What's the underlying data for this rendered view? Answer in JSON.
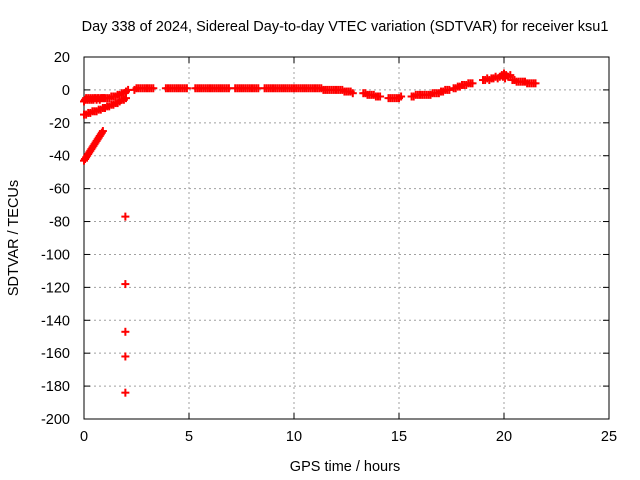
{
  "chart_data": {
    "type": "scatter",
    "title": "Day 338 of 2024, Sidereal Day-to-day VTEC variation (SDTVAR) for receiver ksu1",
    "xlabel": "GPS time / hours",
    "ylabel": "SDTVAR / TECUs",
    "xlim": [
      0,
      25
    ],
    "ylim": [
      -200,
      20
    ],
    "xticks": [
      0,
      5,
      10,
      15,
      20,
      25
    ],
    "yticks": [
      20,
      0,
      -20,
      -40,
      -60,
      -80,
      -100,
      -120,
      -140,
      -160,
      -180,
      -200
    ],
    "grid": true,
    "marker": "plus",
    "color": "#ff0000",
    "series": [
      {
        "name": "SDTVAR",
        "points": [
          [
            0.0,
            -7
          ],
          [
            0.05,
            -6
          ],
          [
            0.1,
            -5
          ],
          [
            0.15,
            -6
          ],
          [
            0.2,
            -5
          ],
          [
            0.25,
            -6
          ],
          [
            0.3,
            -5
          ],
          [
            0.35,
            -6
          ],
          [
            0.4,
            -5
          ],
          [
            0.45,
            -6
          ],
          [
            0.5,
            -5
          ],
          [
            0.55,
            -5
          ],
          [
            0.6,
            -6
          ],
          [
            0.65,
            -5
          ],
          [
            0.7,
            -5
          ],
          [
            0.75,
            -6
          ],
          [
            0.8,
            -5
          ],
          [
            0.85,
            -5
          ],
          [
            0.9,
            -5
          ],
          [
            0.95,
            -5
          ],
          [
            1.0,
            -5
          ],
          [
            1.1,
            -5
          ],
          [
            1.2,
            -5
          ],
          [
            1.3,
            -4
          ],
          [
            1.4,
            -4
          ],
          [
            1.5,
            -4
          ],
          [
            1.6,
            -3
          ],
          [
            1.7,
            -3
          ],
          [
            1.8,
            -2
          ],
          [
            1.9,
            -2
          ],
          [
            2.0,
            -1
          ],
          [
            2.1,
            0
          ],
          [
            0.0,
            -15
          ],
          [
            0.1,
            -15
          ],
          [
            0.2,
            -14
          ],
          [
            0.3,
            -14
          ],
          [
            0.4,
            -13
          ],
          [
            0.5,
            -13
          ],
          [
            0.6,
            -13
          ],
          [
            0.7,
            -12
          ],
          [
            0.8,
            -12
          ],
          [
            0.9,
            -11
          ],
          [
            1.0,
            -11
          ],
          [
            1.1,
            -10
          ],
          [
            1.2,
            -10
          ],
          [
            1.3,
            -9
          ],
          [
            1.4,
            -9
          ],
          [
            1.5,
            -8
          ],
          [
            1.6,
            -8
          ],
          [
            1.7,
            -7
          ],
          [
            1.8,
            -6
          ],
          [
            1.9,
            -6
          ],
          [
            2.0,
            -5
          ],
          [
            0.0,
            -43
          ],
          [
            0.05,
            -42
          ],
          [
            0.1,
            -41
          ],
          [
            0.15,
            -40
          ],
          [
            0.2,
            -39
          ],
          [
            0.25,
            -38
          ],
          [
            0.3,
            -37
          ],
          [
            0.35,
            -36
          ],
          [
            0.4,
            -35
          ],
          [
            0.45,
            -34
          ],
          [
            0.5,
            -33
          ],
          [
            0.55,
            -32
          ],
          [
            0.6,
            -31
          ],
          [
            0.65,
            -30
          ],
          [
            0.7,
            -29
          ],
          [
            0.75,
            -28
          ],
          [
            0.8,
            -27
          ],
          [
            0.85,
            -26
          ],
          [
            0.9,
            -25
          ],
          [
            1.97,
            -77
          ],
          [
            1.97,
            -118
          ],
          [
            1.97,
            -147
          ],
          [
            1.97,
            -162
          ],
          [
            1.97,
            -184
          ],
          [
            2.4,
            0
          ],
          [
            2.5,
            1
          ],
          [
            2.6,
            1
          ],
          [
            2.7,
            1
          ],
          [
            2.8,
            1
          ],
          [
            2.9,
            1
          ],
          [
            3.0,
            1
          ],
          [
            3.1,
            1
          ],
          [
            3.2,
            1
          ],
          [
            3.3,
            1
          ],
          [
            3.9,
            1
          ],
          [
            4.0,
            1
          ],
          [
            4.1,
            1
          ],
          [
            4.2,
            1
          ],
          [
            4.3,
            1
          ],
          [
            4.4,
            1
          ],
          [
            4.5,
            1
          ],
          [
            4.6,
            1
          ],
          [
            4.7,
            1
          ],
          [
            4.8,
            1
          ],
          [
            4.9,
            1
          ],
          [
            5.3,
            1
          ],
          [
            5.4,
            1
          ],
          [
            5.5,
            1
          ],
          [
            5.6,
            1
          ],
          [
            5.7,
            1
          ],
          [
            5.8,
            1
          ],
          [
            5.9,
            1
          ],
          [
            6.0,
            1
          ],
          [
            6.1,
            1
          ],
          [
            6.2,
            1
          ],
          [
            6.3,
            1
          ],
          [
            6.4,
            1
          ],
          [
            6.5,
            1
          ],
          [
            6.6,
            1
          ],
          [
            6.7,
            1
          ],
          [
            6.8,
            1
          ],
          [
            6.9,
            1
          ],
          [
            7.2,
            1
          ],
          [
            7.3,
            1
          ],
          [
            7.4,
            1
          ],
          [
            7.5,
            1
          ],
          [
            7.6,
            1
          ],
          [
            7.7,
            1
          ],
          [
            7.8,
            1
          ],
          [
            7.9,
            1
          ],
          [
            8.0,
            1
          ],
          [
            8.1,
            1
          ],
          [
            8.2,
            1
          ],
          [
            8.3,
            1
          ],
          [
            8.6,
            1
          ],
          [
            8.7,
            1
          ],
          [
            8.8,
            1
          ],
          [
            8.9,
            1
          ],
          [
            9.0,
            1
          ],
          [
            9.1,
            1
          ],
          [
            9.2,
            1
          ],
          [
            9.3,
            1
          ],
          [
            9.4,
            1
          ],
          [
            9.5,
            1
          ],
          [
            9.6,
            1
          ],
          [
            9.7,
            1
          ],
          [
            9.8,
            1
          ],
          [
            9.9,
            1
          ],
          [
            10.0,
            1
          ],
          [
            10.1,
            1
          ],
          [
            10.2,
            1
          ],
          [
            10.3,
            1
          ],
          [
            10.4,
            1
          ],
          [
            10.5,
            1
          ],
          [
            10.6,
            1
          ],
          [
            10.7,
            1
          ],
          [
            10.8,
            1
          ],
          [
            10.9,
            1
          ],
          [
            11.0,
            1
          ],
          [
            11.1,
            1
          ],
          [
            11.2,
            1
          ],
          [
            11.3,
            1
          ],
          [
            11.4,
            0
          ],
          [
            11.5,
            0
          ],
          [
            11.6,
            0
          ],
          [
            11.7,
            0
          ],
          [
            11.8,
            0
          ],
          [
            11.9,
            0
          ],
          [
            12.0,
            0
          ],
          [
            12.1,
            0
          ],
          [
            12.2,
            0
          ],
          [
            12.3,
            0
          ],
          [
            12.4,
            -1
          ],
          [
            12.5,
            -1
          ],
          [
            12.6,
            -1
          ],
          [
            12.7,
            -1
          ],
          [
            12.8,
            -2
          ],
          [
            13.3,
            -2
          ],
          [
            13.4,
            -2
          ],
          [
            13.5,
            -3
          ],
          [
            13.6,
            -3
          ],
          [
            13.7,
            -3
          ],
          [
            13.8,
            -3
          ],
          [
            13.9,
            -4
          ],
          [
            14.0,
            -4
          ],
          [
            14.1,
            -4
          ],
          [
            14.5,
            -5
          ],
          [
            14.6,
            -5
          ],
          [
            14.7,
            -5
          ],
          [
            14.8,
            -5
          ],
          [
            14.9,
            -5
          ],
          [
            15.0,
            -5
          ],
          [
            15.1,
            -4
          ],
          [
            15.6,
            -4
          ],
          [
            15.7,
            -4
          ],
          [
            15.8,
            -3
          ],
          [
            15.9,
            -3
          ],
          [
            16.0,
            -3
          ],
          [
            16.1,
            -3
          ],
          [
            16.2,
            -3
          ],
          [
            16.3,
            -3
          ],
          [
            16.4,
            -3
          ],
          [
            16.5,
            -3
          ],
          [
            16.6,
            -2
          ],
          [
            16.7,
            -2
          ],
          [
            16.8,
            -2
          ],
          [
            16.9,
            -2
          ],
          [
            17.0,
            -1
          ],
          [
            17.1,
            -1
          ],
          [
            17.2,
            0
          ],
          [
            17.3,
            0
          ],
          [
            17.4,
            0
          ],
          [
            17.6,
            1
          ],
          [
            17.7,
            1
          ],
          [
            17.8,
            2
          ],
          [
            17.9,
            2
          ],
          [
            18.0,
            3
          ],
          [
            18.1,
            3
          ],
          [
            18.2,
            3
          ],
          [
            18.3,
            4
          ],
          [
            18.4,
            4
          ],
          [
            18.5,
            4
          ],
          [
            19.0,
            6
          ],
          [
            19.1,
            6
          ],
          [
            19.2,
            7
          ],
          [
            19.3,
            6
          ],
          [
            19.4,
            7
          ],
          [
            19.5,
            7
          ],
          [
            19.6,
            8
          ],
          [
            19.7,
            7
          ],
          [
            19.8,
            8
          ],
          [
            19.9,
            9
          ],
          [
            20.0,
            10
          ],
          [
            20.1,
            9
          ],
          [
            20.2,
            8
          ],
          [
            20.3,
            9
          ],
          [
            19.95,
            8
          ],
          [
            20.05,
            7
          ],
          [
            20.4,
            6
          ],
          [
            20.5,
            6
          ],
          [
            20.6,
            5
          ],
          [
            20.7,
            5
          ],
          [
            20.8,
            5
          ],
          [
            20.9,
            5
          ],
          [
            21.0,
            5
          ],
          [
            21.1,
            4
          ],
          [
            21.2,
            4
          ],
          [
            21.3,
            4
          ],
          [
            21.4,
            4
          ],
          [
            21.5,
            4
          ]
        ]
      }
    ]
  }
}
